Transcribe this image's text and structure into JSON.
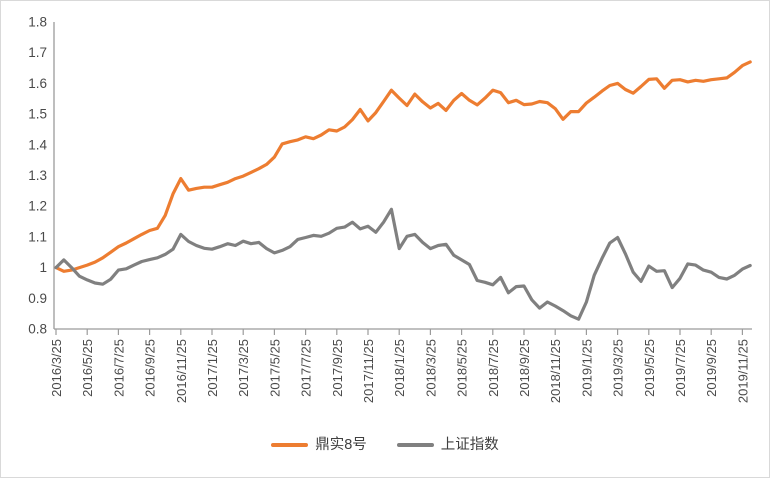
{
  "chart_data": {
    "type": "line",
    "title": "",
    "xlabel": "",
    "ylabel": "",
    "grid": false,
    "legend_position": "bottom-center",
    "ylim": [
      0.8,
      1.8
    ],
    "y_tick_values": [
      1.8,
      1.7,
      1.6,
      1.5,
      1.4,
      1.3,
      1.2,
      1.1,
      1.0,
      0.9,
      0.8
    ],
    "y_tick_labels": [
      "1.8",
      "1.7",
      "1.6",
      "1.5",
      "1.4",
      "1.3",
      "1.2",
      "1.1",
      "1",
      "0.9",
      "0.8"
    ],
    "x_start": "2016/3/25",
    "x_tick_interval_months": 2,
    "x_step_months": 0.5,
    "x_tick_labels": [
      "2016/3/25",
      "2016/5/25",
      "2016/7/25",
      "2016/9/25",
      "2016/11/25",
      "2017/1/25",
      "2017/3/25",
      "2017/5/25",
      "2017/7/25",
      "2017/9/25",
      "2017/11/25",
      "2018/1/25",
      "2018/3/25",
      "2018/5/25",
      "2018/7/25",
      "2018/9/25",
      "2018/11/25",
      "2019/1/25",
      "2019/3/25",
      "2019/5/25",
      "2019/7/25",
      "2019/9/25",
      "2019/11/25"
    ],
    "series": [
      {
        "name": "鼎实8号",
        "color": "#ED7D31",
        "values": [
          1.0,
          0.988,
          0.992,
          1.0,
          1.008,
          1.018,
          1.032,
          1.05,
          1.068,
          1.08,
          1.094,
          1.108,
          1.121,
          1.128,
          1.17,
          1.24,
          1.29,
          1.252,
          1.258,
          1.262,
          1.262,
          1.27,
          1.278,
          1.29,
          1.298,
          1.31,
          1.322,
          1.336,
          1.36,
          1.403,
          1.41,
          1.416,
          1.426,
          1.42,
          1.432,
          1.449,
          1.445,
          1.458,
          1.482,
          1.515,
          1.478,
          1.505,
          1.541,
          1.578,
          1.552,
          1.528,
          1.565,
          1.54,
          1.52,
          1.535,
          1.512,
          1.545,
          1.567,
          1.545,
          1.53,
          1.552,
          1.578,
          1.57,
          1.537,
          1.545,
          1.531,
          1.533,
          1.541,
          1.537,
          1.518,
          1.483,
          1.508,
          1.508,
          1.536,
          1.555,
          1.575,
          1.593,
          1.6,
          1.58,
          1.568,
          1.59,
          1.613,
          1.615,
          1.584,
          1.61,
          1.612,
          1.605,
          1.61,
          1.607,
          1.612,
          1.615,
          1.618,
          1.636,
          1.658,
          1.67
        ]
      },
      {
        "name": "上证指数",
        "color": "#808080",
        "values": [
          1.0,
          1.025,
          1.0,
          0.972,
          0.96,
          0.95,
          0.946,
          0.962,
          0.992,
          0.996,
          1.008,
          1.02,
          1.026,
          1.032,
          1.043,
          1.06,
          1.108,
          1.085,
          1.072,
          1.063,
          1.06,
          1.068,
          1.078,
          1.072,
          1.086,
          1.078,
          1.082,
          1.062,
          1.048,
          1.056,
          1.068,
          1.092,
          1.098,
          1.105,
          1.102,
          1.112,
          1.128,
          1.132,
          1.148,
          1.126,
          1.135,
          1.115,
          1.148,
          1.19,
          1.062,
          1.102,
          1.108,
          1.082,
          1.062,
          1.072,
          1.076,
          1.04,
          1.025,
          1.01,
          0.958,
          0.952,
          0.944,
          0.968,
          0.918,
          0.938,
          0.94,
          0.895,
          0.868,
          0.888,
          0.875,
          0.86,
          0.843,
          0.832,
          0.888,
          0.975,
          1.03,
          1.08,
          1.098,
          1.045,
          0.985,
          0.955,
          1.005,
          0.988,
          0.99,
          0.935,
          0.965,
          1.012,
          1.008,
          0.992,
          0.985,
          0.968,
          0.963,
          0.975,
          0.995,
          1.007
        ]
      }
    ]
  },
  "legend": {
    "items": [
      {
        "label": "鼎实8号",
        "color": "#ED7D31"
      },
      {
        "label": "上证指数",
        "color": "#808080"
      }
    ]
  },
  "colors": {
    "axis_line": "#9b9b9b",
    "tick_label": "#4a4a4a",
    "frame_border": "#d9d9d9",
    "background": "#ffffff"
  }
}
